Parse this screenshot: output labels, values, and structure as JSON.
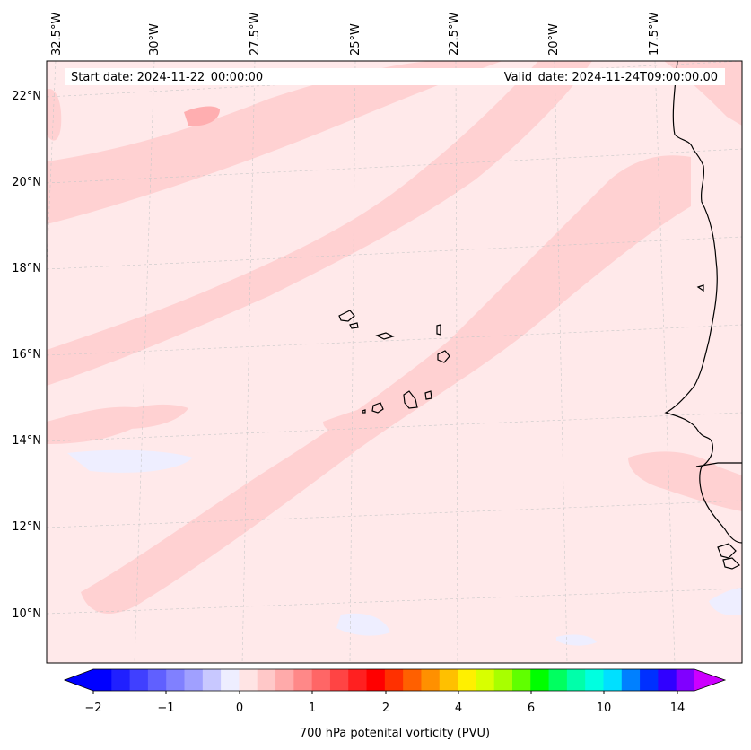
{
  "header": {
    "start_date": "Start date: 2024-11-22_00:00:00",
    "valid_date": "Valid_date: 2024-11-24T09:00:00.00"
  },
  "map": {
    "lon_labels": [
      "32.5°W",
      "30°W",
      "27.5°W",
      "25°W",
      "22.5°W",
      "20°W",
      "17.5°W"
    ],
    "lat_labels": [
      "22°N",
      "20°N",
      "18°N",
      "16°N",
      "14°N",
      "12°N",
      "10°N"
    ],
    "fill_color": "#ffe9ea",
    "band_color": "#ffd1d2",
    "core_color": "#ffaeb0",
    "low_color": "#eeeeff"
  },
  "colorbar": {
    "label": "700 hPa potenital vorticity (PVU)",
    "ticks": [
      "−2",
      "−1",
      "0",
      "1",
      "2",
      "4",
      "6",
      "10",
      "14"
    ],
    "colors": [
      "#0000ff",
      "#2020ff",
      "#4040ff",
      "#6060ff",
      "#8080ff",
      "#a0a0ff",
      "#c8c8ff",
      "#eeeeff",
      "#ffe4e4",
      "#ffc8c8",
      "#ffaaaa",
      "#ff8888",
      "#ff6666",
      "#ff4444",
      "#ff2020",
      "#ff0000",
      "#ff3000",
      "#ff6000",
      "#ff9000",
      "#ffc000",
      "#fff000",
      "#d8ff00",
      "#a8ff00",
      "#60ff00",
      "#00ff00",
      "#00ff60",
      "#00ffaa",
      "#00ffe0",
      "#00e0ff",
      "#0080ff",
      "#0030ff",
      "#3000ff",
      "#8000ff"
    ],
    "extend_min_color": "#0000ff",
    "extend_max_color": "#cc00ff"
  }
}
